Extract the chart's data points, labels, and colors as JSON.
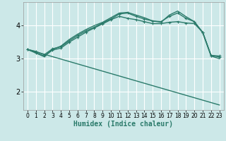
{
  "bg_color": "#cce8e8",
  "plot_bg_color": "#cce8e8",
  "grid_color": "#ffffff",
  "line_color": "#2a7a6a",
  "xlabel": "Humidex (Indice chaleur)",
  "xlabel_fontsize": 7,
  "xlim": [
    -0.5,
    23.5
  ],
  "ylim": [
    1.45,
    4.7
  ],
  "yticks": [
    2,
    3,
    4
  ],
  "ytick_fontsize": 7,
  "xtick_fontsize": 5.5,
  "xticks": [
    0,
    1,
    2,
    3,
    4,
    5,
    6,
    7,
    8,
    9,
    10,
    11,
    12,
    13,
    14,
    15,
    16,
    17,
    18,
    19,
    20,
    21,
    22,
    23
  ],
  "lines": [
    {
      "x": [
        0,
        1,
        2,
        3,
        4,
        5,
        6,
        7,
        8,
        9,
        10,
        11,
        12,
        13,
        14,
        15,
        16,
        17,
        18,
        19,
        20,
        21,
        22,
        23
      ],
      "y": [
        3.28,
        3.18,
        3.08,
        3.26,
        3.32,
        3.5,
        3.65,
        3.8,
        3.93,
        4.05,
        4.18,
        4.28,
        4.22,
        4.18,
        4.12,
        4.06,
        4.06,
        4.1,
        4.12,
        4.08,
        4.06,
        3.8,
        3.1,
        3.05
      ],
      "marker": true,
      "lw": 1.0
    },
    {
      "x": [
        0,
        1,
        2,
        3,
        4,
        5,
        6,
        7,
        8,
        9,
        10,
        11,
        12,
        13,
        14,
        15,
        16,
        17,
        18,
        19,
        20,
        21,
        22,
        23
      ],
      "y": [
        3.28,
        3.22,
        3.12,
        3.3,
        3.36,
        3.54,
        3.7,
        3.84,
        3.95,
        4.08,
        4.2,
        4.35,
        4.38,
        4.28,
        4.2,
        4.14,
        4.12,
        4.28,
        4.38,
        4.22,
        4.12,
        3.8,
        3.1,
        3.08
      ],
      "marker": true,
      "lw": 1.0
    },
    {
      "x": [
        0,
        2,
        3,
        4,
        5,
        6,
        7,
        8,
        9,
        10,
        11,
        12,
        13,
        14,
        15,
        16,
        17,
        18,
        19,
        20,
        21,
        22,
        23
      ],
      "y": [
        3.28,
        3.06,
        3.28,
        3.38,
        3.58,
        3.74,
        3.88,
        4.0,
        4.1,
        4.24,
        4.38,
        4.4,
        4.32,
        4.24,
        4.14,
        4.1,
        4.32,
        4.44,
        4.27,
        4.12,
        3.78,
        3.08,
        3.0
      ],
      "marker": false,
      "lw": 1.0
    },
    {
      "x": [
        0,
        23
      ],
      "y": [
        3.28,
        1.6
      ],
      "marker": false,
      "lw": 1.0
    }
  ]
}
